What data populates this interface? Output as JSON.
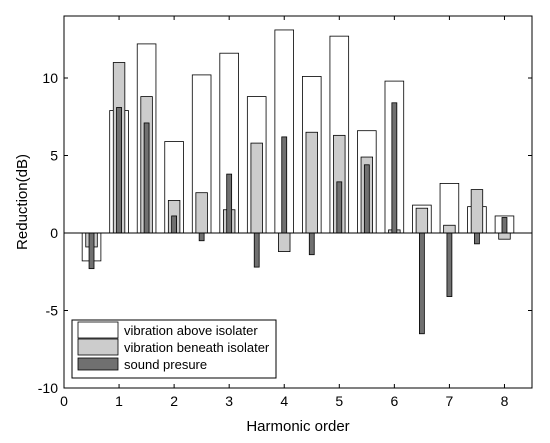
{
  "chart_data": {
    "type": "bar",
    "title": "",
    "xlabel": "Harmonic order",
    "ylabel": "Reduction(dB)",
    "xlim": [
      0,
      8.5
    ],
    "ylim": [
      -10,
      14
    ],
    "xticks": [
      "0",
      "1",
      "2",
      "3",
      "4",
      "5",
      "6",
      "7",
      "8"
    ],
    "yticks": [
      "-10",
      "-5",
      "0",
      "5",
      "10"
    ],
    "legend_position": "bottom-left",
    "grid": false,
    "x": [
      0.5,
      1,
      1.5,
      2,
      2.5,
      3,
      3.5,
      4,
      4.5,
      5,
      5.5,
      6,
      6.5,
      7,
      7.5,
      8
    ],
    "series": [
      {
        "name": "vibration above isolater",
        "color": "#ffffff",
        "values": [
          -1.8,
          7.9,
          12.2,
          5.9,
          10.2,
          11.6,
          8.8,
          13.1,
          10.1,
          12.7,
          6.6,
          9.8,
          1.8,
          3.2,
          1.7,
          1.1
        ]
      },
      {
        "name": "vibration beneath isolater",
        "color": "#cccccc",
        "values": [
          -0.9,
          11.0,
          8.8,
          2.1,
          2.6,
          1.5,
          5.8,
          -1.2,
          6.5,
          6.3,
          4.9,
          0.2,
          1.6,
          0.5,
          2.8,
          -0.4
        ]
      },
      {
        "name": "sound presure",
        "color": "#707070",
        "values": [
          -2.3,
          8.1,
          7.1,
          1.1,
          -0.5,
          3.8,
          -2.2,
          6.2,
          -1.4,
          3.3,
          4.4,
          8.4,
          -6.5,
          -4.1,
          -0.7,
          1.0
        ]
      }
    ]
  }
}
